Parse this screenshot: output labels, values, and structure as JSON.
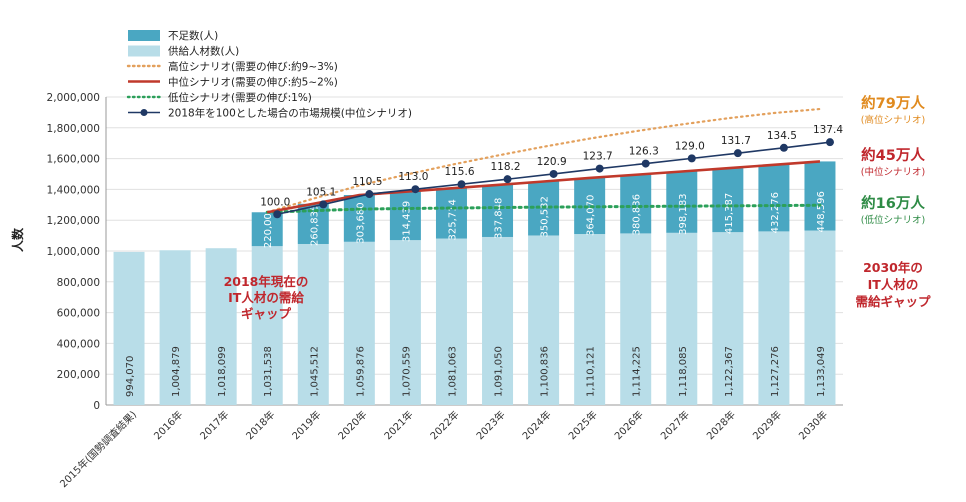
{
  "chart_data": {
    "type": "bar",
    "ylabel": "人数",
    "ylim": [
      0,
      2000000
    ],
    "yticks": [
      "0",
      "200,000",
      "400,000",
      "600,000",
      "800,000",
      "1,000,000",
      "1,200,000",
      "1,400,000",
      "1,600,000",
      "1,800,000",
      "2,000,000"
    ],
    "categories": [
      "2015年(国勢調査結果)",
      "2016年",
      "2017年",
      "2018年",
      "2019年",
      "2020年",
      "2021年",
      "2022年",
      "2023年",
      "2024年",
      "2025年",
      "2026年",
      "2027年",
      "2028年",
      "2029年",
      "2030年"
    ],
    "series": [
      {
        "name": "供給人材数(人)",
        "kind": "bar",
        "color": "#b8dde8",
        "values": [
          994070,
          1004879,
          1018099,
          1031538,
          1045512,
          1059876,
          1070559,
          1081063,
          1091050,
          1100836,
          1110121,
          1114225,
          1118085,
          1122367,
          1127276,
          1133049
        ],
        "labels": [
          "994,070",
          "1,004,879",
          "1,018,099",
          "1,031,538",
          "1,045,512",
          "1,059,876",
          "1,070,559",
          "1,081,063",
          "1,091,050",
          "1,100,836",
          "1,110,121",
          "1,114,225",
          "1,118,085",
          "1,122,367",
          "1,127,276",
          "1,133,049"
        ]
      },
      {
        "name": "不足数(人)",
        "kind": "bar",
        "color": "#4aa7c2",
        "values": [
          null,
          null,
          null,
          220000,
          260835,
          303680,
          314439,
          325714,
          337848,
          350532,
          364070,
          380836,
          398183,
          415387,
          432276,
          448596
        ],
        "labels": [
          "",
          "",
          "",
          "220,000",
          "260,835",
          "303,680",
          "314,439",
          "325,714",
          "337,848",
          "350,532",
          "364,070",
          "380,836",
          "398,183",
          "415,387",
          "432,276",
          "448,596"
        ]
      },
      {
        "name": "高位シナリオ(需要の伸び:約9~3%)",
        "kind": "line-dotted",
        "color": "#e3a05c",
        "values": [
          null,
          null,
          null,
          1251538,
          1340000,
          1425000,
          1495000,
          1560000,
          1620000,
          1677000,
          1730000,
          1778000,
          1822000,
          1862000,
          1896000,
          1922000
        ]
      },
      {
        "name": "中位シナリオ(需要の伸び:約5~2%)",
        "kind": "line-solid",
        "color": "#c0392b",
        "values": [
          null,
          null,
          null,
          1251538,
          1306347,
          1363556,
          1384998,
          1406777,
          1428898,
          1451368,
          1474191,
          1495061,
          1516268,
          1537754,
          1559552,
          1581645
        ]
      },
      {
        "name": "低位シナリオ(需要の伸び:1%)",
        "kind": "line-dotted",
        "color": "#2ca05a",
        "values": [
          null,
          null,
          null,
          1251538,
          1262000,
          1272000,
          1276000,
          1279000,
          1282000,
          1285000,
          1287000,
          1289000,
          1291000,
          1293000,
          1295000,
          1297000
        ]
      },
      {
        "name": "2018年を100とした場合の市場規模(中位シナリオ)",
        "kind": "index-line",
        "color": "#1f3864",
        "values": [
          null,
          null,
          null,
          100.0,
          105.1,
          110.5,
          113.0,
          115.6,
          118.2,
          120.9,
          123.7,
          126.3,
          129.0,
          131.7,
          134.5,
          137.4
        ],
        "labels": [
          "",
          "",
          "",
          "100.0",
          "105.1",
          "110.5",
          "113.0",
          "115.6",
          "118.2",
          "120.9",
          "123.7",
          "126.3",
          "129.0",
          "131.7",
          "134.5",
          "137.4"
        ]
      }
    ],
    "legend_position": "top-left",
    "annotations": {
      "high": {
        "big": "約79万人",
        "small": "(高位シナリオ)",
        "color": "#e08a1e"
      },
      "mid": {
        "big": "約45万人",
        "small": "(中位シナリオ)",
        "color": "#c0272d"
      },
      "low": {
        "big": "約16万人",
        "small": "(低位シナリオ)",
        "color": "#2e8b45"
      },
      "gap2018": [
        "2018年現在の",
        "IT人材の需給",
        "ギャップ"
      ],
      "gap2030": [
        "2030年の",
        "IT人材の",
        "需給ギャップ"
      ]
    }
  }
}
